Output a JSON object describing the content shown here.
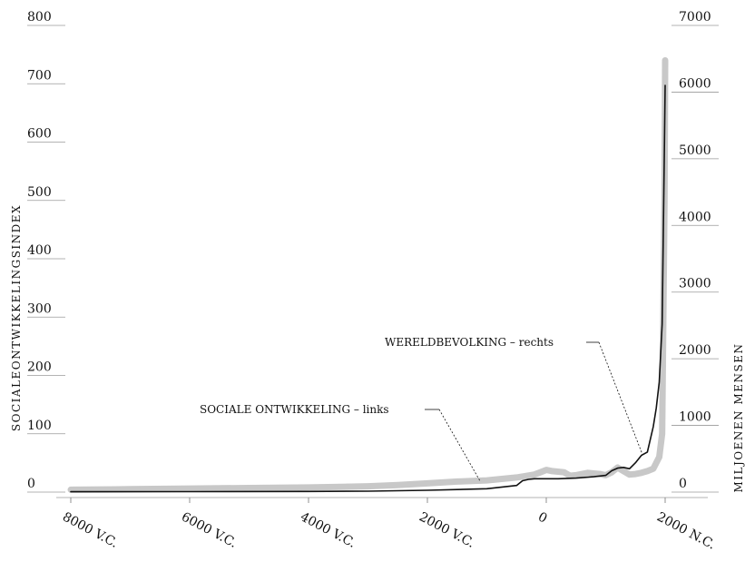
{
  "chart_data": {
    "type": "line",
    "title": "",
    "xlabel": "",
    "ylabel_left": "SOCIALEONTWIKKELINGSINDEX",
    "ylabel_right": "MILJOENEN MENSEN",
    "xlim": [
      -8000,
      2000
    ],
    "ylim_left": [
      0,
      800
    ],
    "ylim_right": [
      0,
      7000
    ],
    "x_ticks": [
      {
        "value": -8000,
        "label": "8000 V.C."
      },
      {
        "value": -6000,
        "label": "6000 V.C."
      },
      {
        "value": -4000,
        "label": "4000 V.C."
      },
      {
        "value": -2000,
        "label": "2000 V.C."
      },
      {
        "value": 0,
        "label": "0"
      },
      {
        "value": 2000,
        "label": "2000 N.C."
      }
    ],
    "y_ticks_left": [
      {
        "value": 0,
        "label": "0"
      },
      {
        "value": 100,
        "label": "100"
      },
      {
        "value": 200,
        "label": "200"
      },
      {
        "value": 300,
        "label": "300"
      },
      {
        "value": 400,
        "label": "400"
      },
      {
        "value": 500,
        "label": "500"
      },
      {
        "value": 600,
        "label": "600"
      },
      {
        "value": 700,
        "label": "700"
      },
      {
        "value": 800,
        "label": "800"
      }
    ],
    "y_ticks_right": [
      {
        "value": 0,
        "label": "0"
      },
      {
        "value": 1000,
        "label": "1000"
      },
      {
        "value": 2000,
        "label": "2000"
      },
      {
        "value": 3000,
        "label": "3000"
      },
      {
        "value": 4000,
        "label": "4000"
      },
      {
        "value": 5000,
        "label": "5000"
      },
      {
        "value": 6000,
        "label": "6000"
      },
      {
        "value": 7000,
        "label": "7000"
      }
    ],
    "series": [
      {
        "name": "SOCIALE ONTWIKKELING – links",
        "axis": "left",
        "color": "#c8c8c8",
        "x": [
          -8000,
          -7000,
          -6000,
          -5000,
          -4000,
          -3000,
          -2500,
          -2000,
          -1500,
          -1000,
          -500,
          -200,
          -100,
          0,
          100,
          300,
          400,
          500,
          700,
          900,
          1000,
          1100,
          1200,
          1300,
          1400,
          1500,
          1600,
          1700,
          1800,
          1900,
          1950,
          1990,
          2000
        ],
        "y": [
          4,
          5,
          6,
          7,
          8,
          10,
          12,
          15,
          18,
          20,
          25,
          30,
          34,
          38,
          36,
          34,
          28,
          29,
          33,
          31,
          29,
          34,
          42,
          36,
          30,
          31,
          33,
          36,
          40,
          60,
          100,
          500,
          740
        ]
      },
      {
        "name": "WERELDBEVOLKING – rechts",
        "axis": "right",
        "color": "#111111",
        "x": [
          -8000,
          -6000,
          -4000,
          -3000,
          -2000,
          -1000,
          -500,
          -400,
          -300,
          -200,
          0,
          200,
          500,
          800,
          1000,
          1100,
          1200,
          1300,
          1400,
          1500,
          1600,
          1700,
          1800,
          1850,
          1900,
          1950,
          1990,
          2000
        ],
        "y": [
          5,
          7,
          10,
          14,
          27,
          50,
          100,
          170,
          190,
          200,
          200,
          200,
          210,
          230,
          250,
          320,
          360,
          370,
          350,
          440,
          550,
          600,
          980,
          1260,
          1650,
          2520,
          5300,
          6100
        ]
      }
    ],
    "annotations": [
      {
        "text": "WERELDBEVOLKING – rechts",
        "series": 1
      },
      {
        "text": "SOCIALE ONTWIKKELING – links",
        "series": 0
      }
    ],
    "grid": false
  }
}
